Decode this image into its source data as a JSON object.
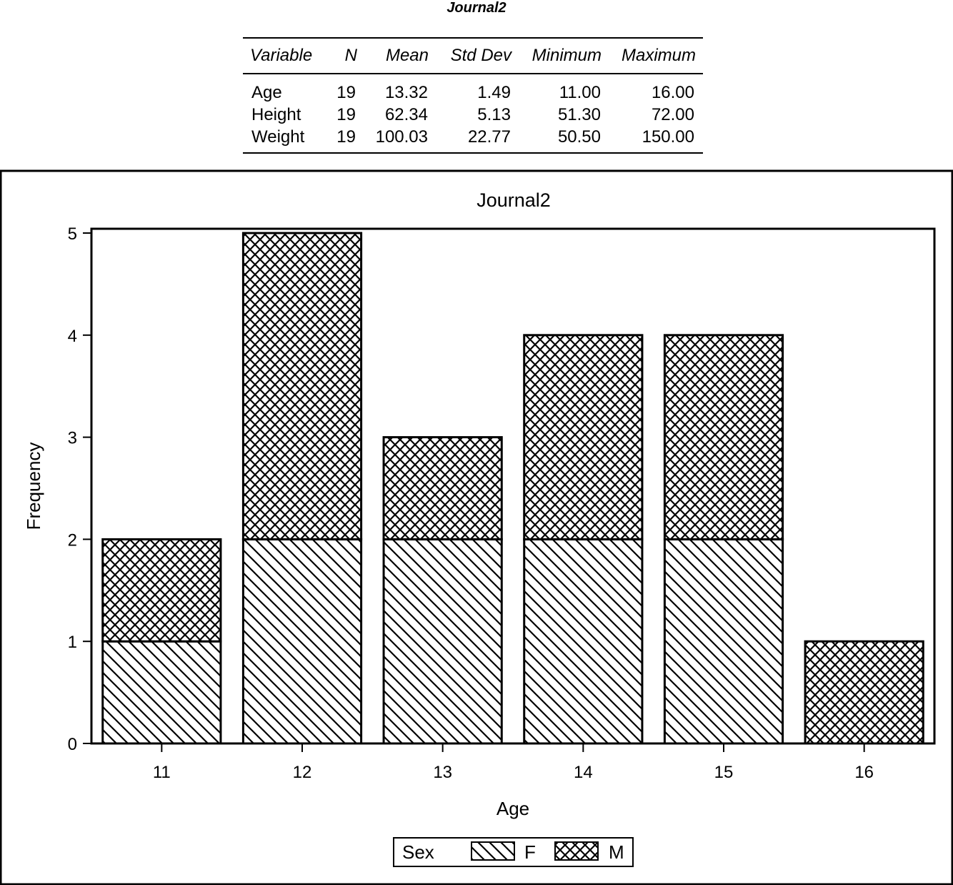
{
  "table": {
    "title": "Journal2",
    "headers": [
      "Variable",
      "N",
      "Mean",
      "Std Dev",
      "Minimum",
      "Maximum"
    ],
    "rows": [
      [
        "Age",
        "19",
        "13.32",
        "1.49",
        "11.00",
        "16.00"
      ],
      [
        "Height",
        "19",
        "62.34",
        "5.13",
        "51.30",
        "72.00"
      ],
      [
        "Weight",
        "19",
        "100.03",
        "22.77",
        "50.50",
        "150.00"
      ]
    ]
  },
  "chart_data": {
    "type": "bar",
    "stacked": true,
    "title": "Journal2",
    "xlabel": "Age",
    "ylabel": "Frequency",
    "categories": [
      "11",
      "12",
      "13",
      "14",
      "15",
      "16"
    ],
    "series": [
      {
        "name": "F",
        "values": [
          1,
          2,
          2,
          2,
          2,
          0
        ],
        "pattern": "diagonal-hatch"
      },
      {
        "name": "M",
        "values": [
          1,
          3,
          1,
          2,
          2,
          1
        ],
        "pattern": "crosshatch"
      }
    ],
    "ylim": [
      0,
      5
    ],
    "yticks": [
      0,
      1,
      2,
      3,
      4,
      5
    ],
    "grid": false,
    "legend": {
      "title": "Sex",
      "placement": "bottom-center"
    }
  }
}
